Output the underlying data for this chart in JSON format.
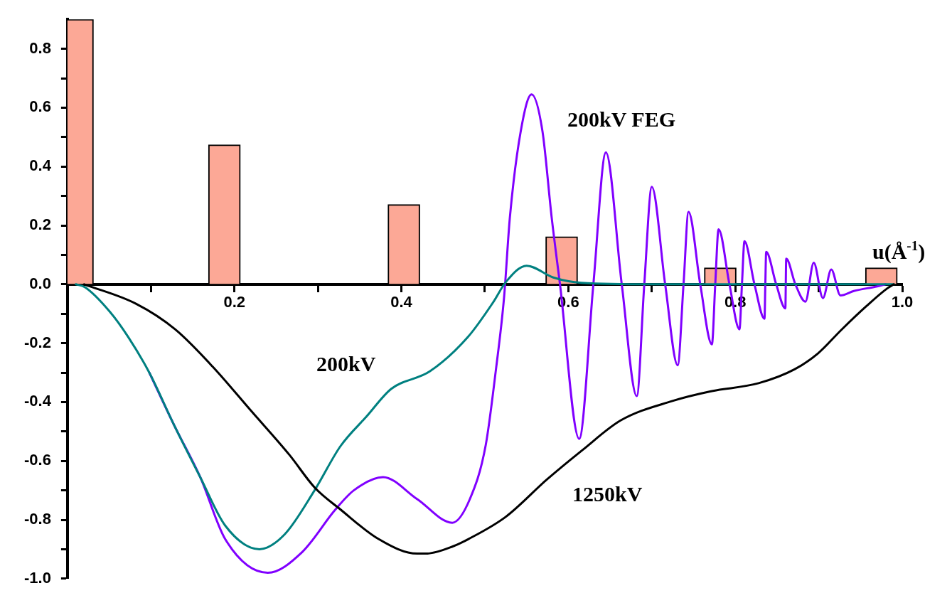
{
  "chart_data": {
    "type": "line",
    "xlabel": "u(Å$^{-1}$)",
    "xlim": [
      0,
      1.0
    ],
    "ylim": [
      -1.0,
      0.9
    ],
    "xticks": [
      {
        "value": 0.1,
        "label": null
      },
      0.2,
      {
        "value": 0.3,
        "label": null
      },
      0.4,
      {
        "value": 0.5,
        "label": null
      },
      0.6,
      {
        "value": 0.7,
        "label": null
      },
      0.8,
      {
        "value": 0.9,
        "label": null
      },
      {
        "value": 1.0,
        "label": "1.0"
      }
    ],
    "yticks": [
      {
        "value": -1.0,
        "label": "-1.0"
      },
      {
        "value": -0.9,
        "label": null
      },
      -0.8,
      {
        "value": -0.7,
        "label": null
      },
      -0.6,
      {
        "value": -0.5,
        "label": null
      },
      -0.4,
      {
        "value": -0.3,
        "label": null
      },
      -0.2,
      {
        "value": -0.1,
        "label": null
      },
      {
        "value": 0,
        "label": "0.0"
      },
      {
        "value": 0.1,
        "label": null
      },
      0.2,
      {
        "value": 0.3,
        "label": null
      },
      0.4,
      {
        "value": 0.5,
        "label": null
      },
      0.6,
      {
        "value": 0.7,
        "label": null
      },
      0.8
    ],
    "grid": false,
    "legend": false,
    "marker": "none",
    "line_style": "solid",
    "series": [
      {
        "type": "bar",
        "color": "#fca896",
        "x": [
          0.012,
          0.188,
          0.403,
          0.592,
          0.782,
          0.975
        ],
        "values": [
          0.9,
          0.474,
          0.271,
          0.162,
          0.056,
          0.056
        ]
      },
      {
        "name": "1250kV",
        "color": "#000000",
        "x": [
          0.02,
          0.082,
          0.129,
          0.174,
          0.22,
          0.266,
          0.296,
          0.327,
          0.373,
          0.419,
          0.428,
          0.462,
          0.48,
          0.525,
          0.574,
          0.617,
          0.663,
          0.724,
          0.77,
          0.828,
          0.871,
          0.899,
          0.927,
          0.956,
          0.982,
          0.99
        ],
        "values": [
          0,
          -0.066,
          -0.153,
          -0.28,
          -0.43,
          -0.58,
          -0.69,
          -0.765,
          -0.866,
          -0.915,
          -0.915,
          -0.89,
          -0.866,
          -0.79,
          -0.664,
          -0.563,
          -0.462,
          -0.397,
          -0.364,
          -0.336,
          -0.289,
          -0.235,
          -0.155,
          -0.077,
          -0.014,
          0
        ]
      },
      {
        "name": "200kV",
        "color": "#008080",
        "x": [
          0.01,
          0.021,
          0.051,
          0.073,
          0.098,
          0.128,
          0.159,
          0.189,
          0.23,
          0.26,
          0.296,
          0.327,
          0.358,
          0.388,
          0.434,
          0.48,
          0.51,
          0.525,
          0.55,
          0.582,
          0.616,
          0.7,
          0.8,
          0.9,
          0.99
        ],
        "values": [
          0,
          -0.01,
          -0.094,
          -0.18,
          -0.3,
          -0.48,
          -0.655,
          -0.82,
          -0.9,
          -0.85,
          -0.7,
          -0.55,
          -0.45,
          -0.355,
          -0.296,
          -0.178,
          -0.061,
          0.007,
          0.063,
          0.023,
          0.005,
          0,
          0,
          0,
          0
        ]
      },
      {
        "name": "200kV FEG",
        "color": "#8000ff",
        "x": [
          0.098,
          0.128,
          0.159,
          0.189,
          0.24,
          0.281,
          0.321,
          0.343,
          0.378,
          0.419,
          0.461,
          0.482,
          0.501,
          0.513,
          0.523,
          0.53,
          0.543,
          0.556,
          0.569,
          0.58,
          0.59,
          0.613,
          0.63,
          0.645,
          0.664,
          0.682,
          0.691,
          0.7,
          0.716,
          0.731,
          0.738,
          0.744,
          0.758,
          0.772,
          0.776,
          0.78,
          0.793,
          0.805,
          0.808,
          0.811,
          0.823,
          0.835,
          0.836,
          0.837,
          0.849,
          0.86,
          0.861,
          0.872,
          0.884,
          0.894,
          0.905,
          0.915,
          0.926,
          0.942,
          0.97,
          0.98
        ],
        "values": [
          -0.3,
          -0.48,
          -0.655,
          -0.866,
          -0.98,
          -0.91,
          -0.765,
          -0.7,
          -0.655,
          -0.73,
          -0.81,
          -0.73,
          -0.547,
          -0.296,
          -0.045,
          0.228,
          0.52,
          0.645,
          0.52,
          0.228,
          0,
          -0.525,
          0,
          0.448,
          0,
          -0.38,
          0,
          0.331,
          0,
          -0.275,
          0,
          0.246,
          0,
          -0.204,
          0,
          0.187,
          0,
          -0.153,
          0,
          0.146,
          0,
          -0.117,
          0,
          0.11,
          0,
          -0.082,
          0.087,
          0,
          -0.059,
          0.073,
          -0.047,
          0.05,
          -0.038,
          -0.023,
          -0.007,
          0
        ]
      }
    ]
  }
}
